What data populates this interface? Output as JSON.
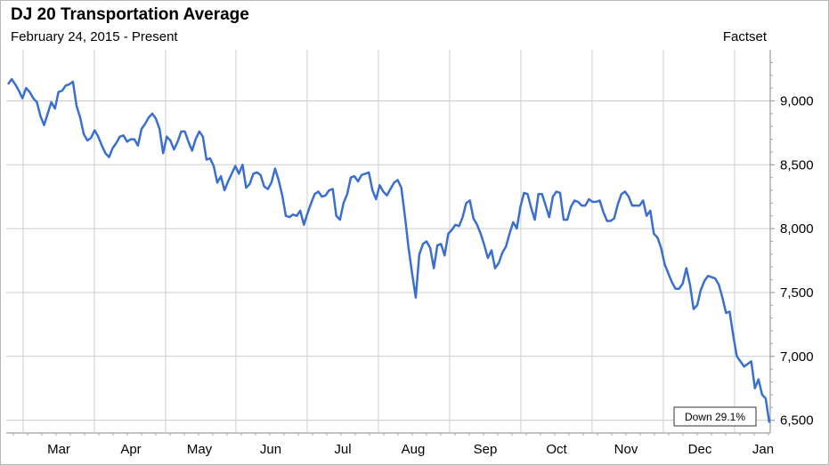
{
  "chart_data": {
    "type": "line",
    "title": "DJ 20 Transportation Average",
    "subtitle": "February 24, 2015 - Present",
    "source": "Factset",
    "annotation": "Down 29.1%",
    "xlabel": "",
    "ylabel": "",
    "ylim": [
      6400,
      9400
    ],
    "y_ticks": [
      6500,
      7000,
      7500,
      8000,
      8500,
      9000
    ],
    "y_tick_labels": [
      "6,500",
      "7,000",
      "7,500",
      "8,000",
      "8,500",
      "9,000"
    ],
    "x_tick_labels": [
      "Mar",
      "Apr",
      "May",
      "Jun",
      "Jul",
      "Aug",
      "Sep",
      "Oct",
      "Nov",
      "Dec",
      "Jan"
    ],
    "grid": true,
    "line_color": "#3a6fd0",
    "series": [
      {
        "values": [
          9130,
          9170,
          9130,
          9080,
          9020,
          9100,
          9070,
          9020,
          8990,
          8880,
          8810,
          8900,
          8990,
          8940,
          9070,
          9080,
          9120,
          9130,
          9150,
          8960,
          8870,
          8740,
          8690,
          8710,
          8770,
          8720,
          8650,
          8590,
          8560,
          8630,
          8670,
          8720,
          8730,
          8680,
          8700,
          8700,
          8650,
          8780,
          8820,
          8870,
          8900,
          8860,
          8780,
          8590,
          8720,
          8690,
          8620,
          8680,
          8760,
          8760,
          8680,
          8610,
          8700,
          8760,
          8720,
          8540,
          8550,
          8490,
          8360,
          8410,
          8300,
          8370,
          8430,
          8490,
          8430,
          8500,
          8320,
          8350,
          8430,
          8440,
          8420,
          8330,
          8310,
          8360,
          8470,
          8380,
          8260,
          8100,
          8090,
          8110,
          8100,
          8140,
          8030,
          8120,
          8200,
          8270,
          8290,
          8250,
          8260,
          8300,
          8310,
          8100,
          8070,
          8200,
          8270,
          8400,
          8410,
          8370,
          8420,
          8430,
          8440,
          8300,
          8230,
          8340,
          8290,
          8260,
          8310,
          8360,
          8380,
          8320,
          8100,
          7850,
          7650,
          7460,
          7800,
          7880,
          7900,
          7850,
          7690,
          7870,
          7880,
          7790,
          7960,
          7990,
          8030,
          8020,
          8090,
          8200,
          8220,
          8080,
          8030,
          7960,
          7870,
          7770,
          7830,
          7690,
          7730,
          7810,
          7860,
          7960,
          8050,
          8000,
          8170,
          8280,
          8270,
          8160,
          8070,
          8270,
          8270,
          8180,
          8090,
          8250,
          8290,
          8280,
          8070,
          8070,
          8170,
          8220,
          8210,
          8180,
          8180,
          8230,
          8210,
          8210,
          8220,
          8130,
          8060,
          8060,
          8080,
          8190,
          8270,
          8290,
          8250,
          8180,
          8180,
          8180,
          8220,
          8100,
          8140,
          7960,
          7930,
          7850,
          7720,
          7650,
          7580,
          7530,
          7530,
          7570,
          7690,
          7560,
          7370,
          7400,
          7520,
          7590,
          7630,
          7620,
          7610,
          7560,
          7460,
          7340,
          7350,
          7160,
          7000,
          6960,
          6920,
          6940,
          6960,
          6750,
          6820,
          6700,
          6670,
          6480
        ]
      }
    ]
  }
}
